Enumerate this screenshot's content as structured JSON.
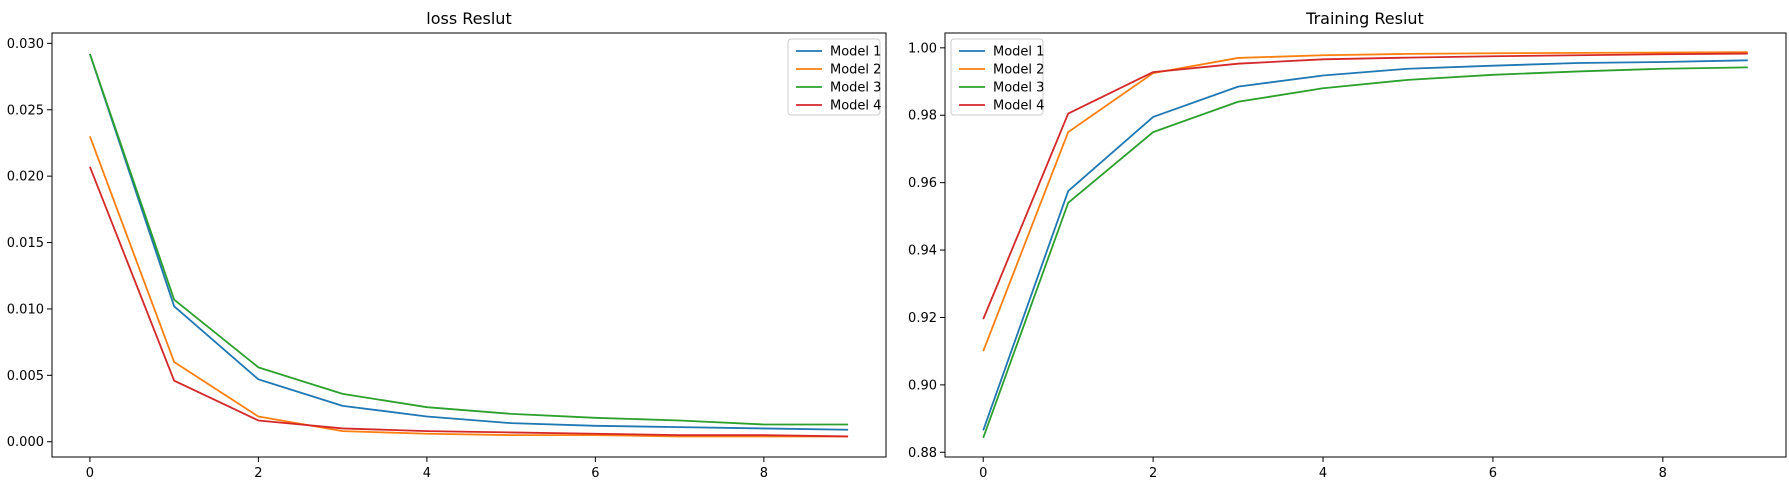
{
  "colors": {
    "series": [
      "#1f77b4",
      "#ff7f0e",
      "#2ca02c",
      "#d62728"
    ],
    "axis": "#000000",
    "legend_border": "#cccccc",
    "background": "#ffffff"
  },
  "chart_data": [
    {
      "type": "line",
      "title": "loss Reslut",
      "xlabel": "",
      "ylabel": "",
      "x": [
        0,
        1,
        2,
        3,
        4,
        5,
        6,
        7,
        8,
        9
      ],
      "xlim": [
        -0.45,
        9.45
      ],
      "ylim": [
        -0.00115,
        0.03078
      ],
      "xticks": [
        0,
        2,
        4,
        6,
        8
      ],
      "xtick_labels": [
        "0",
        "2",
        "4",
        "6",
        "8"
      ],
      "yticks": [
        0.0,
        0.005,
        0.01,
        0.015,
        0.02,
        0.025,
        0.03
      ],
      "ytick_labels": [
        "0.000",
        "0.005",
        "0.010",
        "0.015",
        "0.020",
        "0.025",
        "0.030"
      ],
      "grid": false,
      "legend_position": "upper right",
      "series": [
        {
          "name": "Model 1",
          "values": [
            0.0292,
            0.0102,
            0.0047,
            0.0027,
            0.0019,
            0.0014,
            0.0012,
            0.0011,
            0.001,
            0.0009
          ]
        },
        {
          "name": "Model 2",
          "values": [
            0.023,
            0.006,
            0.0019,
            0.0008,
            0.0006,
            0.0005,
            0.0005,
            0.0004,
            0.0004,
            0.0004
          ]
        },
        {
          "name": "Model 3",
          "values": [
            0.0292,
            0.0107,
            0.0056,
            0.0036,
            0.0026,
            0.0021,
            0.0018,
            0.0016,
            0.0013,
            0.0013
          ]
        },
        {
          "name": "Model 4",
          "values": [
            0.0207,
            0.0046,
            0.0016,
            0.001,
            0.0008,
            0.0007,
            0.0006,
            0.0005,
            0.0005,
            0.0004
          ]
        }
      ]
    },
    {
      "type": "line",
      "title": "Training Reslut",
      "xlabel": "",
      "ylabel": "",
      "x": [
        0,
        1,
        2,
        3,
        4,
        5,
        6,
        7,
        8,
        9
      ],
      "xlim": [
        -0.45,
        9.45
      ],
      "ylim": [
        0.8786,
        1.0044
      ],
      "xticks": [
        0,
        2,
        4,
        6,
        8
      ],
      "xtick_labels": [
        "0",
        "2",
        "4",
        "6",
        "8"
      ],
      "yticks": [
        0.88,
        0.9,
        0.92,
        0.94,
        0.96,
        0.98,
        1.0
      ],
      "ytick_labels": [
        "0.88",
        "0.90",
        "0.92",
        "0.94",
        "0.96",
        "0.98",
        "1.00"
      ],
      "grid": false,
      "legend_position": "upper left",
      "series": [
        {
          "name": "Model 1",
          "values": [
            0.8865,
            0.9575,
            0.9795,
            0.9885,
            0.9918,
            0.9938,
            0.9947,
            0.9955,
            0.9958,
            0.9963
          ]
        },
        {
          "name": "Model 2",
          "values": [
            0.91,
            0.975,
            0.9925,
            0.997,
            0.9978,
            0.9982,
            0.9984,
            0.9985,
            0.9986,
            0.9987
          ]
        },
        {
          "name": "Model 3",
          "values": [
            0.8843,
            0.954,
            0.975,
            0.984,
            0.988,
            0.9905,
            0.992,
            0.993,
            0.9938,
            0.9942
          ]
        },
        {
          "name": "Model 4",
          "values": [
            0.9195,
            0.9805,
            0.9928,
            0.9953,
            0.9966,
            0.9971,
            0.9975,
            0.9978,
            0.9981,
            0.9983
          ]
        }
      ]
    }
  ]
}
